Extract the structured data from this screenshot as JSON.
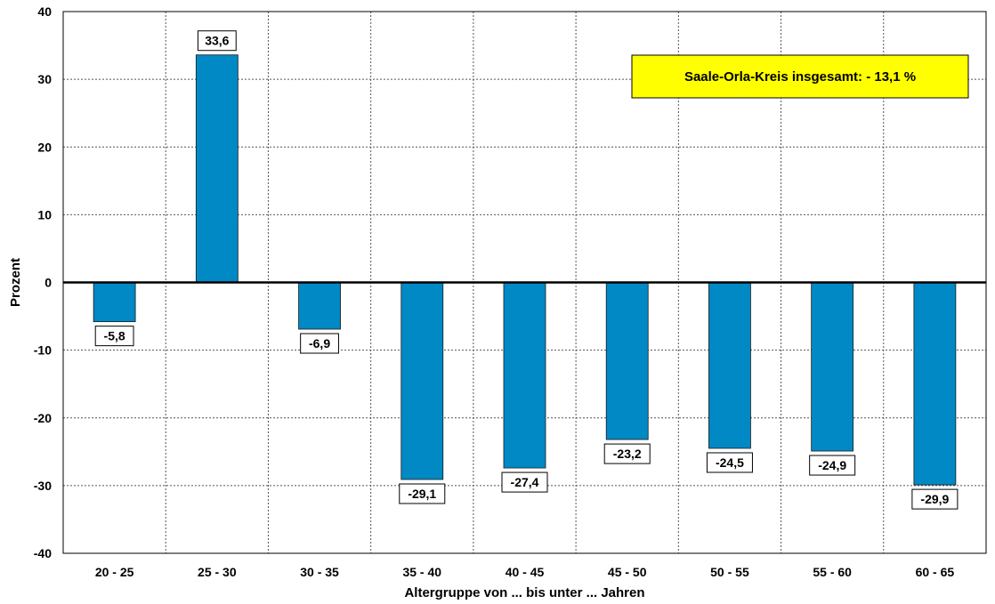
{
  "chart_data": {
    "type": "bar",
    "xlabel": "Altergruppe von ... bis unter ... Jahren",
    "ylabel": "Prozent",
    "categories": [
      "20 - 25",
      "25 - 30",
      "30 - 35",
      "35 - 40",
      "40 - 45",
      "45 - 50",
      "50 - 55",
      "55 - 60",
      "60 - 65"
    ],
    "values": [
      -5.8,
      33.6,
      -6.9,
      -29.1,
      -27.4,
      -23.2,
      -24.5,
      -24.9,
      -29.9
    ],
    "value_labels": [
      "-5,8",
      "33,6",
      "-6,9",
      "-29,1",
      "-27,4",
      "-23,2",
      "-24,5",
      "-24,9",
      "-29,9"
    ],
    "ylim": [
      -40,
      40
    ],
    "yticks": [
      -40,
      -30,
      -20,
      -10,
      0,
      10,
      20,
      30,
      40
    ],
    "grid": true,
    "grid_style": "dotted",
    "bar_color": "#0089c4",
    "annotation": {
      "text": "Saale-Orla-Kreis insgesamt: - 13,1 %",
      "background": "#ffff00",
      "placement": "top-right"
    }
  }
}
